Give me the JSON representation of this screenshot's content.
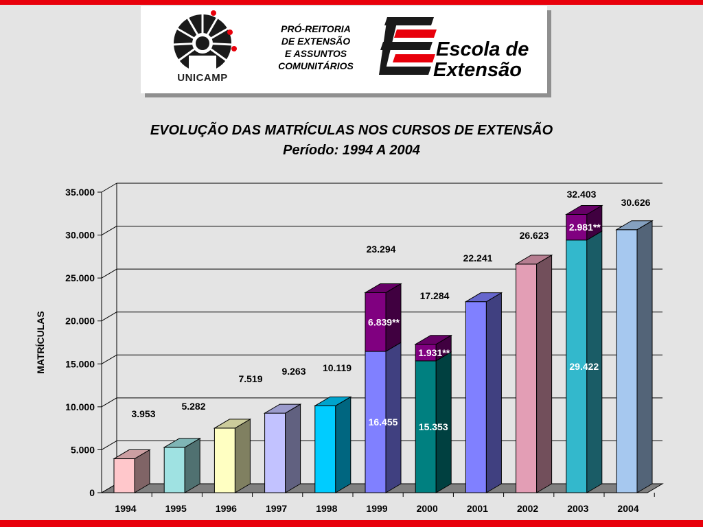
{
  "header": {
    "org_lines": [
      "PRÓ-REITORIA",
      "DE EXTENSÃO",
      "E ASSUNTOS",
      "COMUNITÁRIOS"
    ],
    "university": "UNICAMP",
    "school_lines": [
      "Escola de",
      "Extensão"
    ],
    "colors": {
      "accent": "#e8000b",
      "dark": "#1a1a1a"
    }
  },
  "chart_data": {
    "type": "bar",
    "title": "EVOLUÇÃO DAS MATRÍCULAS NOS CURSOS DE EXTENSÃO",
    "subtitle": "Período: 1994 A 2004",
    "ylabel": "MATRÍCULAS",
    "xlabel": "",
    "ylim": [
      0,
      35000
    ],
    "yticks": [
      0,
      5000,
      10000,
      15000,
      20000,
      25000,
      30000,
      35000
    ],
    "ytick_labels": [
      "0",
      "5.000",
      "10.000",
      "15.000",
      "20.000",
      "25.000",
      "30.000",
      "35.000"
    ],
    "grid": true,
    "categories": [
      "1994",
      "1995",
      "1996",
      "1997",
      "1998",
      "1999",
      "2000",
      "2001",
      "2002",
      "2003",
      "2004"
    ],
    "values": [
      3953,
      5282,
      7519,
      9263,
      10119,
      23294,
      17284,
      22241,
      26623,
      32403,
      30626
    ],
    "value_labels": [
      "3.953",
      "5.282",
      "7.519",
      "9.263",
      "10.119",
      "23.294",
      "17.284",
      "22.241",
      "26.623",
      "32.403",
      "30.626"
    ],
    "bar_colors": [
      "#ffc7cb",
      "#9fe2e2",
      "#ffffc2",
      "#c2c2ff",
      "#00ccff",
      "#8080ff",
      "#008080",
      "#8080ff",
      "#e39eb5",
      "#33b8cc",
      "#a6c8ef"
    ],
    "stacks": [
      {
        "category": "1999",
        "base": 16455,
        "base_label": "16.455",
        "top": 6839,
        "top_label": "6.839**"
      },
      {
        "category": "2000",
        "base": 15353,
        "base_label": "15.353",
        "top": 1931,
        "top_label": "1.931**"
      },
      {
        "category": "2003",
        "base": 29422,
        "base_label": "29.422",
        "top": 2981,
        "top_label": "2.981**"
      }
    ],
    "stack_top_color": "#800080"
  }
}
